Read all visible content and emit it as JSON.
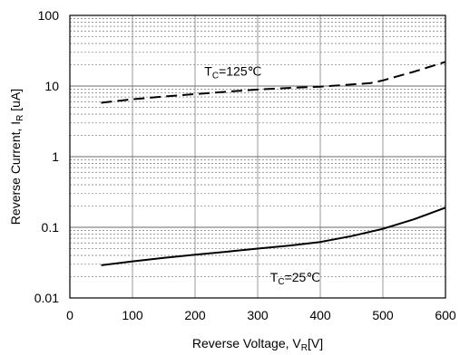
{
  "chart_data": {
    "type": "line",
    "xlabel": {
      "main": "Reverse Voltage, V",
      "sub": "R",
      "unit": "[V]"
    },
    "ylabel": {
      "main": "Reverse Current, I",
      "sub": "R",
      "unit": " [uA]"
    },
    "xlim": [
      0,
      600
    ],
    "ylim": [
      0.01,
      100
    ],
    "yscale": "log",
    "x_ticks": [
      0,
      100,
      200,
      300,
      400,
      500,
      600
    ],
    "x_tick_labels": [
      "0",
      "100",
      "200",
      "300",
      "400",
      "500",
      "600"
    ],
    "y_ticks": [
      0.01,
      0.1,
      1,
      10,
      100
    ],
    "y_tick_labels": [
      "0.01",
      "0.1",
      "1",
      "10",
      "100"
    ],
    "grid": true,
    "series": [
      {
        "style": "dashed",
        "x": [
          50,
          100,
          150,
          200,
          250,
          300,
          350,
          400,
          450,
          480,
          500,
          550,
          600
        ],
        "y": [
          5.8,
          6.5,
          7.1,
          7.7,
          8.3,
          8.9,
          9.4,
          9.8,
          10.5,
          11.0,
          12.0,
          16.0,
          22.0
        ]
      },
      {
        "style": "solid",
        "x": [
          50,
          100,
          150,
          200,
          250,
          300,
          350,
          400,
          450,
          500,
          550,
          600
        ],
        "y": [
          0.029,
          0.033,
          0.037,
          0.041,
          0.045,
          0.05,
          0.055,
          0.062,
          0.075,
          0.095,
          0.13,
          0.19
        ]
      }
    ],
    "annotations": [
      {
        "main": "T",
        "sub": "C",
        "rest": "=125℃",
        "x": 215,
        "y": 14
      },
      {
        "main": "T",
        "sub": "C",
        "rest": "=25℃",
        "x": 320,
        "y": 0.017
      }
    ]
  }
}
